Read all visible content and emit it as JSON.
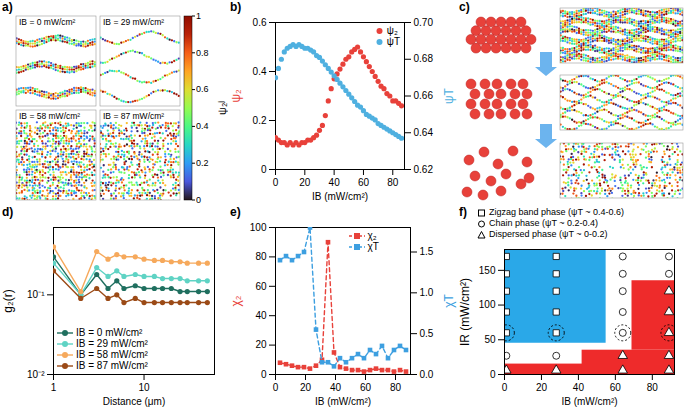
{
  "chart_data": [
    {
      "panel": "a)",
      "type": "image",
      "labels": [
        "IB = 0 mW/cm²",
        "IB = 29 mW/cm²",
        "IB = 58 mW/cm²",
        "IB = 87 mW/cm²"
      ],
      "colorbar": {
        "label": "ψ₂ʲ",
        "range": [
          0,
          1
        ],
        "ticks": [
          0,
          0.2,
          0.4,
          0.6,
          0.8,
          1
        ]
      }
    },
    {
      "panel": "b)",
      "type": "scatter",
      "marker": "circle",
      "legend": "top-right",
      "xlabel": "IB (mW/cm²)",
      "ylabel": "ψ₂",
      "y2label": "ψT",
      "xlim": [
        0,
        88
      ],
      "xticks": [
        0,
        20,
        40,
        60,
        80
      ],
      "ylim": [
        0,
        0.6
      ],
      "yticks": [
        0,
        0.2,
        0.4,
        0.6
      ],
      "y2lim": [
        0.62,
        0.7
      ],
      "y2ticks": [
        0.62,
        0.64,
        0.66,
        0.68,
        {
          "value": 0.7,
          "label": "0.70"
        }
      ],
      "x": [
        0,
        2,
        4,
        6,
        8,
        10,
        12,
        14,
        16,
        18,
        20,
        22,
        24,
        26,
        28,
        30,
        32,
        34,
        36,
        38,
        40,
        42,
        44,
        46,
        48,
        50,
        52,
        54,
        56,
        58,
        60,
        62,
        64,
        66,
        68,
        70,
        72,
        74,
        76,
        78,
        80,
        82,
        84,
        86
      ],
      "series": [
        {
          "name": "ψ₂",
          "color": "#e8413a",
          "values": [
            0.13,
            0.12,
            0.11,
            0.11,
            0.1,
            0.11,
            0.1,
            0.11,
            0.1,
            0.11,
            0.11,
            0.12,
            0.12,
            0.13,
            0.14,
            0.16,
            0.18,
            0.22,
            0.28,
            0.33,
            0.37,
            0.39,
            0.41,
            0.43,
            0.45,
            0.46,
            0.48,
            0.49,
            0.5,
            0.48,
            0.46,
            0.44,
            0.42,
            0.4,
            0.38,
            0.36,
            0.34,
            0.33,
            0.31,
            0.3,
            0.28,
            0.28,
            0.27,
            0.26
          ]
        },
        {
          "name": "ψT",
          "color": "#4fb0e0",
          "axis": "y2",
          "values": [
            0.67,
            0.675,
            0.68,
            0.684,
            0.686,
            0.687,
            0.688,
            0.687,
            0.688,
            0.687,
            0.686,
            0.686,
            0.685,
            0.684,
            0.682,
            0.681,
            0.679,
            0.677,
            0.675,
            0.673,
            0.671,
            0.669,
            0.667,
            0.665,
            0.663,
            0.661,
            0.659,
            0.657,
            0.655,
            0.654,
            0.652,
            0.65,
            0.649,
            0.648,
            0.647,
            0.645,
            0.644,
            0.643,
            0.642,
            0.641,
            0.64,
            0.639,
            0.638,
            0.637
          ]
        }
      ]
    },
    {
      "panel": "c)",
      "type": "diagram"
    },
    {
      "panel": "d)",
      "type": "line",
      "log": true,
      "marker": "circle",
      "legend": "bottom-left",
      "xlabel": "Distance (μm)",
      "ylabel": "g₂(r)",
      "xlim": [
        1,
        60
      ],
      "xticks": [
        1,
        10
      ],
      "ylim": [
        0.01,
        0.7
      ],
      "yticks": [
        {
          "value": 0.01,
          "label": "10⁻²"
        },
        {
          "value": 0.1,
          "label": "10⁻¹"
        }
      ],
      "x": [
        1,
        2,
        3,
        4,
        5,
        6,
        8,
        10,
        13,
        16,
        20,
        25,
        30,
        40,
        50
      ],
      "series": [
        {
          "name": "IB = 0 mW/cm²",
          "color": "#1f6f5f",
          "values": [
            0.3,
            0.1,
            0.18,
            0.12,
            0.15,
            0.12,
            0.13,
            0.12,
            0.12,
            0.12,
            0.12,
            0.11,
            0.11,
            0.11,
            0.11
          ]
        },
        {
          "name": "IB = 29 mW/cm²",
          "color": "#5fd3c4",
          "values": [
            0.25,
            0.1,
            0.22,
            0.17,
            0.2,
            0.17,
            0.18,
            0.17,
            0.17,
            0.16,
            0.16,
            0.16,
            0.15,
            0.15,
            0.15
          ]
        },
        {
          "name": "IB = 58 mW/cm²",
          "color": "#f6a95c",
          "values": [
            0.4,
            0.11,
            0.35,
            0.28,
            0.32,
            0.3,
            0.3,
            0.28,
            0.27,
            0.27,
            0.26,
            0.26,
            0.25,
            0.25,
            0.25
          ]
        },
        {
          "name": "IB = 87 mW/cm²",
          "color": "#9b4a16",
          "values": [
            0.2,
            0.09,
            0.12,
            0.09,
            0.1,
            0.08,
            0.09,
            0.08,
            0.08,
            0.08,
            0.08,
            0.08,
            0.08,
            0.08,
            0.08
          ]
        }
      ]
    },
    {
      "panel": "e)",
      "type": "line",
      "marker": "square",
      "line_style": "dashed",
      "legend": "top",
      "xlabel": "IB (mW/cm²)",
      "ylabel": "χ₂",
      "y2label": "χT",
      "xlim": [
        0,
        90
      ],
      "xticks": [
        0,
        20,
        40,
        60,
        80
      ],
      "ylim": [
        0,
        100
      ],
      "yticks": [
        0,
        20,
        40,
        60,
        80,
        100
      ],
      "y2lim": [
        0,
        1.8
      ],
      "y2ticks": [
        {
          "value": 0,
          "label": "0.0"
        },
        {
          "value": 0.5,
          "label": "0.5"
        },
        {
          "value": 1,
          "label": "1.0"
        },
        {
          "value": 1.5,
          "label": "1.5"
        }
      ],
      "x": [
        3,
        7,
        11,
        15,
        19,
        23,
        27,
        31,
        35,
        39,
        43,
        47,
        51,
        55,
        59,
        63,
        67,
        71,
        75,
        79,
        83,
        87
      ],
      "series": [
        {
          "name": "χ₂",
          "color": "#e8413a",
          "values": [
            8,
            7,
            6,
            5,
            5,
            4,
            6,
            10,
            90,
            15,
            5,
            4,
            3,
            3,
            2,
            3,
            4,
            3,
            3,
            2,
            3,
            2
          ]
        },
        {
          "name": "χT",
          "color": "#3d9fe0",
          "axis": "y2",
          "values": [
            1.4,
            1.45,
            1.4,
            1.45,
            1.5,
            1.8,
            0.55,
            0.15,
            0.15,
            0.1,
            0.2,
            0.15,
            0.2,
            0.25,
            0.2,
            0.3,
            0.25,
            0.35,
            0.2,
            0.3,
            0.35,
            0.3
          ]
        }
      ]
    },
    {
      "panel": "f)",
      "type": "phase_diagram",
      "legend": "top",
      "xlabel": "IB (mW/cm²)",
      "ylabel": "IR (mW/cm²)",
      "xlim": [
        0,
        92
      ],
      "xticks": [
        0,
        20,
        40,
        60,
        80
      ],
      "ylim": [
        0,
        180
      ],
      "yticks": [
        0,
        50,
        100,
        150
      ],
      "phases": [
        {
          "name": "Zigzag band phase (ψT ~ 0.4-0.6)",
          "marker": "square"
        },
        {
          "name": "Chain phase (ψT ~ 0.2-0.4)",
          "marker": "circle"
        },
        {
          "name": "Dispersed phase (ψT ~ 0-0.2)",
          "marker": "triangle"
        }
      ],
      "regions": [
        {
          "x1": 0,
          "x2": 55,
          "y1": 45,
          "y2": 180,
          "color": "#2aa8e8"
        },
        {
          "x1": 0,
          "x2": 92,
          "y1": 0,
          "y2": 15,
          "color": "#ee2b2b"
        },
        {
          "x1": 42,
          "x2": 92,
          "y1": 0,
          "y2": 35,
          "color": "#ee2b2b"
        },
        {
          "x1": 69,
          "x2": 92,
          "y1": 35,
          "y2": 135,
          "color": "#ee2b2b"
        }
      ],
      "points": [
        {
          "x": 1,
          "y": 170,
          "phase": 0
        },
        {
          "x": 1,
          "y": 145,
          "phase": 0
        },
        {
          "x": 1,
          "y": 120,
          "phase": 0
        },
        {
          "x": 1,
          "y": 90,
          "phase": 0
        },
        {
          "x": 1,
          "y": 60,
          "phase": 0,
          "circled": true
        },
        {
          "x": 1,
          "y": 27,
          "phase": 1
        },
        {
          "x": 1,
          "y": 6,
          "phase": 2
        },
        {
          "x": 28,
          "y": 170,
          "phase": 0
        },
        {
          "x": 28,
          "y": 145,
          "phase": 0
        },
        {
          "x": 28,
          "y": 120,
          "phase": 0
        },
        {
          "x": 28,
          "y": 90,
          "phase": 0
        },
        {
          "x": 28,
          "y": 60,
          "phase": 0,
          "circled": true
        },
        {
          "x": 28,
          "y": 27,
          "phase": 1
        },
        {
          "x": 28,
          "y": 6,
          "phase": 2
        },
        {
          "x": 64,
          "y": 170,
          "phase": 1
        },
        {
          "x": 64,
          "y": 145,
          "phase": 1
        },
        {
          "x": 64,
          "y": 120,
          "phase": 1
        },
        {
          "x": 64,
          "y": 90,
          "phase": 1
        },
        {
          "x": 64,
          "y": 60,
          "phase": 1,
          "circled": true
        },
        {
          "x": 64,
          "y": 27,
          "phase": 2
        },
        {
          "x": 64,
          "y": 6,
          "phase": 2
        },
        {
          "x": 89,
          "y": 170,
          "phase": 1
        },
        {
          "x": 89,
          "y": 145,
          "phase": 1
        },
        {
          "x": 89,
          "y": 120,
          "phase": 2
        },
        {
          "x": 89,
          "y": 90,
          "phase": 2
        },
        {
          "x": 89,
          "y": 60,
          "phase": 2,
          "circled": true
        },
        {
          "x": 89,
          "y": 27,
          "phase": 2
        },
        {
          "x": 89,
          "y": 6,
          "phase": 2
        }
      ]
    }
  ]
}
